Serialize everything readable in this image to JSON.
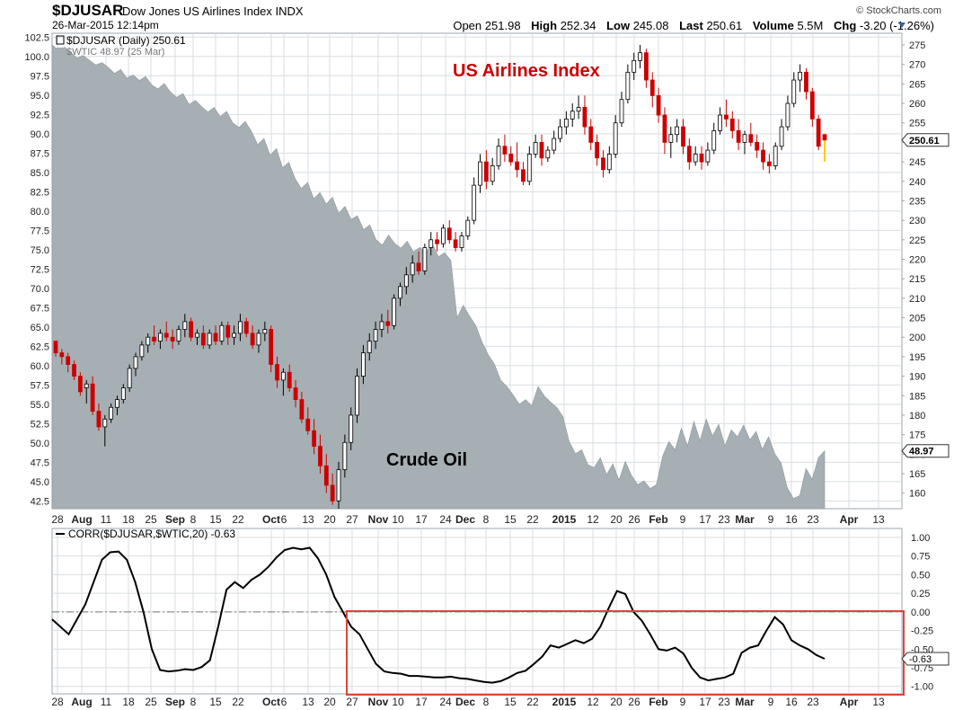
{
  "header": {
    "symbol": "$DJUSAR",
    "name": "Dow Jones US Airlines Index",
    "exchange": "INDX",
    "datetime": "26-Mar-2015 12:14pm",
    "brand": "© StockCharts.com",
    "quote": {
      "open_label": "Open",
      "open": "251.98",
      "high_label": "High",
      "high": "252.34",
      "low_label": "Low",
      "low": "245.08",
      "last_label": "Last",
      "last": "250.61",
      "volume_label": "Volume",
      "volume": "5.5M",
      "chg_label": "Chg",
      "chg": "-3.20 (-1.26%)"
    }
  },
  "chart_data": [
    {
      "type": "candlestick",
      "legend": [
        "$DJUSAR (Daily) 250.61",
        "$WTIC 48.97 (25 Mar)"
      ],
      "annotations": [
        "US Airlines Index",
        "Crude Oil"
      ],
      "colors": {
        "up": "#000000",
        "down": "#cc0000",
        "oil_area": "#a6afb3",
        "annotation_airlines": "#cc0000",
        "annotation_oil": "#000000",
        "last_candle": "#ffcc00"
      },
      "x_tick_labels": [
        "28",
        "Aug",
        "11",
        "18",
        "25",
        "Sep",
        "8",
        "15",
        "22",
        "Oct",
        "6",
        "13",
        "20",
        "27",
        "Nov",
        "10",
        "17",
        "24",
        "Dec",
        "8",
        "15",
        "22",
        "2015",
        "12",
        "20",
        "26",
        "Feb",
        "9",
        "17",
        "23",
        "Mar",
        "9",
        "16",
        "23",
        "Apr",
        "13"
      ],
      "bold_x_ticks": [
        "Aug",
        "Sep",
        "Oct",
        "Nov",
        "Dec",
        "2015",
        "Feb",
        "Mar",
        "Apr"
      ],
      "left_axis": {
        "series": "$WTIC",
        "ylim": [
          41.5,
          103
        ],
        "ticks": [
          "102.5",
          "100.0",
          "97.5",
          "95.0",
          "92.5",
          "90.0",
          "87.5",
          "85.0",
          "82.5",
          "80.0",
          "77.5",
          "75.0",
          "72.5",
          "70.0",
          "67.5",
          "65.0",
          "62.5",
          "60.0",
          "57.5",
          "55.0",
          "52.5",
          "50.0",
          "47.5",
          "45.0",
          "42.5"
        ]
      },
      "right_axis": {
        "series": "$DJUSAR",
        "ylim": [
          156,
          278
        ],
        "ticks": [
          "275",
          "270",
          "265",
          "260",
          "255",
          "250",
          "245",
          "240",
          "235",
          "230",
          "225",
          "220",
          "215",
          "210",
          "205",
          "200",
          "195",
          "190",
          "185",
          "180",
          "175",
          "170",
          "165",
          "160"
        ],
        "last_value_tag": "250.61",
        "oil_value_tag": "48.97"
      },
      "wtic_close": [
        101.5,
        100.8,
        101.2,
        100.5,
        99.8,
        100.1,
        99.5,
        98.9,
        99.2,
        98.6,
        97.8,
        98.3,
        97.2,
        97.6,
        96.9,
        97.4,
        96.3,
        95.8,
        96.5,
        95.4,
        94.7,
        95.2,
        93.8,
        94.3,
        93.5,
        92.8,
        93.4,
        92.2,
        92.9,
        91.4,
        90.8,
        91.6,
        90.3,
        88.6,
        89.4,
        87.2,
        88.1,
        85.6,
        86.3,
        84.2,
        82.9,
        83.7,
        81.6,
        82.4,
        80.9,
        81.8,
        79.7,
        80.6,
        78.9,
        79.4,
        77.6,
        78.2,
        76.3,
        75.6,
        76.9,
        75.8,
        75.2,
        76.1,
        74.7,
        75.3,
        74.6,
        75.8,
        74.1,
        74.6,
        73.6,
        66.2,
        67.8,
        66.4,
        65.2,
        63.1,
        61.4,
        60.2,
        58.1,
        57.3,
        56.2,
        55.0,
        55.6,
        54.8,
        57.3,
        56.1,
        55.3,
        54.6,
        53.4,
        50.2,
        48.6,
        49.1,
        47.2,
        46.8,
        48.1,
        45.9,
        47.3,
        45.2,
        47.6,
        45.8,
        44.6,
        45.1,
        44.1,
        44.6,
        48.3,
        50.2,
        49.1,
        51.9,
        49.6,
        52.8,
        50.3,
        53.1,
        50.9,
        52.4,
        49.6,
        51.7,
        50.8,
        52.3,
        50.4,
        51.5,
        49.2,
        50.8,
        48.6,
        47.4,
        44.2,
        42.8,
        43.2,
        46.7,
        45.3,
        48.1,
        48.97
      ],
      "djusar_ohlc": [
        [
          199,
          199,
          195,
          196
        ],
        [
          196,
          197,
          193,
          195
        ],
        [
          195,
          196,
          191,
          193
        ],
        [
          193,
          194,
          189,
          190
        ],
        [
          190,
          191,
          185,
          186
        ],
        [
          187,
          189,
          183,
          188
        ],
        [
          188,
          190,
          180,
          181
        ],
        [
          181,
          183,
          176,
          177
        ],
        [
          177,
          180,
          172,
          179
        ],
        [
          179,
          183,
          178,
          182
        ],
        [
          182,
          185,
          180,
          184
        ],
        [
          184,
          188,
          183,
          187
        ],
        [
          187,
          193,
          186,
          192
        ],
        [
          192,
          196,
          190,
          195
        ],
        [
          195,
          199,
          194,
          198
        ],
        [
          198,
          201,
          196,
          200
        ],
        [
          200,
          203,
          198,
          199
        ],
        [
          199,
          202,
          197,
          201
        ],
        [
          201,
          204,
          199,
          200
        ],
        [
          200,
          202,
          197,
          199
        ],
        [
          199,
          203,
          198,
          202
        ],
        [
          202,
          206,
          200,
          204
        ],
        [
          204,
          205,
          199,
          200
        ],
        [
          200,
          202,
          198,
          201
        ],
        [
          201,
          203,
          197,
          198
        ],
        [
          198,
          202,
          197,
          201
        ],
        [
          201,
          203,
          198,
          199
        ],
        [
          199,
          204,
          198,
          203
        ],
        [
          203,
          204,
          198,
          200
        ],
        [
          200,
          203,
          198,
          201
        ],
        [
          201,
          206,
          199,
          204
        ],
        [
          204,
          205,
          200,
          201
        ],
        [
          201,
          203,
          197,
          198
        ],
        [
          198,
          202,
          196,
          201
        ],
        [
          201,
          204,
          199,
          202
        ],
        [
          202,
          203,
          191,
          193
        ],
        [
          193,
          195,
          187,
          189
        ],
        [
          189,
          192,
          185,
          191
        ],
        [
          191,
          193,
          186,
          187
        ],
        [
          187,
          189,
          182,
          184
        ],
        [
          184,
          186,
          178,
          179
        ],
        [
          179,
          182,
          175,
          176
        ],
        [
          176,
          179,
          170,
          172
        ],
        [
          172,
          175,
          165,
          167
        ],
        [
          167,
          170,
          160,
          162
        ],
        [
          162,
          165,
          157,
          158
        ],
        [
          158,
          168,
          156,
          166
        ],
        [
          166,
          175,
          164,
          173
        ],
        [
          173,
          182,
          171,
          180
        ],
        [
          180,
          192,
          178,
          190
        ],
        [
          190,
          198,
          188,
          196
        ],
        [
          196,
          201,
          194,
          199
        ],
        [
          199,
          204,
          197,
          202
        ],
        [
          202,
          206,
          200,
          204
        ],
        [
          204,
          207,
          201,
          203
        ],
        [
          203,
          211,
          202,
          210
        ],
        [
          210,
          214,
          208,
          213
        ],
        [
          213,
          218,
          211,
          216
        ],
        [
          216,
          221,
          214,
          219
        ],
        [
          219,
          222,
          216,
          217
        ],
        [
          217,
          224,
          216,
          223
        ],
        [
          223,
          227,
          221,
          225
        ],
        [
          225,
          227,
          222,
          224
        ],
        [
          224,
          229,
          223,
          228
        ],
        [
          228,
          230,
          224,
          225
        ],
        [
          225,
          227,
          222,
          223
        ],
        [
          223,
          227,
          222,
          226
        ],
        [
          226,
          231,
          225,
          230
        ],
        [
          230,
          241,
          229,
          239
        ],
        [
          239,
          247,
          237,
          245
        ],
        [
          245,
          248,
          238,
          240
        ],
        [
          240,
          246,
          239,
          244
        ],
        [
          244,
          251,
          243,
          249
        ],
        [
          249,
          252,
          245,
          247
        ],
        [
          247,
          249,
          244,
          245
        ],
        [
          245,
          250,
          241,
          243
        ],
        [
          243,
          245,
          239,
          240
        ],
        [
          240,
          249,
          239,
          247
        ],
        [
          247,
          252,
          246,
          250
        ],
        [
          250,
          252,
          244,
          246
        ],
        [
          246,
          249,
          245,
          248
        ],
        [
          248,
          253,
          247,
          251
        ],
        [
          251,
          256,
          250,
          254
        ],
        [
          254,
          258,
          252,
          256
        ],
        [
          256,
          260,
          254,
          258
        ],
        [
          258,
          262,
          256,
          259
        ],
        [
          259,
          262,
          252,
          254
        ],
        [
          254,
          256,
          248,
          250
        ],
        [
          250,
          252,
          244,
          246
        ],
        [
          246,
          248,
          241,
          243
        ],
        [
          243,
          249,
          242,
          247
        ],
        [
          247,
          257,
          246,
          255
        ],
        [
          255,
          263,
          254,
          261
        ],
        [
          261,
          270,
          260,
          268
        ],
        [
          268,
          273,
          266,
          271
        ],
        [
          271,
          275,
          269,
          273
        ],
        [
          273,
          274,
          264,
          266
        ],
        [
          266,
          268,
          259,
          262
        ],
        [
          262,
          264,
          255,
          257
        ],
        [
          257,
          259,
          247,
          250
        ],
        [
          250,
          254,
          246,
          252
        ],
        [
          252,
          256,
          250,
          254
        ],
        [
          254,
          256,
          247,
          249
        ],
        [
          249,
          251,
          243,
          245
        ],
        [
          245,
          249,
          244,
          247
        ],
        [
          247,
          249,
          243,
          245
        ],
        [
          245,
          250,
          244,
          248
        ],
        [
          248,
          255,
          247,
          253
        ],
        [
          253,
          259,
          252,
          257
        ],
        [
          257,
          261,
          254,
          256
        ],
        [
          256,
          258,
          251,
          253
        ],
        [
          253,
          256,
          248,
          250
        ],
        [
          250,
          253,
          247,
          252
        ],
        [
          252,
          255,
          249,
          250
        ],
        [
          250,
          252,
          246,
          248
        ],
        [
          248,
          250,
          243,
          245
        ],
        [
          245,
          247,
          242,
          244
        ],
        [
          244,
          250,
          243,
          249
        ],
        [
          249,
          256,
          248,
          254
        ],
        [
          254,
          262,
          253,
          260
        ],
        [
          260,
          268,
          259,
          266
        ],
        [
          266,
          270,
          263,
          268
        ],
        [
          268,
          269,
          261,
          263
        ],
        [
          263,
          264,
          254,
          256
        ],
        [
          256,
          257,
          248,
          249
        ],
        [
          251.98,
          252.34,
          245.08,
          250.61
        ]
      ]
    },
    {
      "type": "line",
      "legend": "CORR($DJUSAR,$WTIC,20) -0.63",
      "color": "#000000",
      "highlight_box_color": "#d9453a",
      "x_tick_labels": [
        "28",
        "Aug",
        "11",
        "18",
        "25",
        "Sep",
        "8",
        "15",
        "22",
        "Oct",
        "6",
        "13",
        "20",
        "27",
        "Nov",
        "10",
        "17",
        "24",
        "Dec",
        "8",
        "15",
        "22",
        "2015",
        "12",
        "20",
        "26",
        "Feb",
        "9",
        "17",
        "23",
        "Mar",
        "9",
        "16",
        "23",
        "Apr",
        "13"
      ],
      "ylim": [
        -1.1,
        1.12
      ],
      "y_ticks": [
        "1.00",
        "0.75",
        "0.50",
        "0.25",
        "0.00",
        "-0.25",
        "-0.50",
        "-0.75",
        "-1.00"
      ],
      "last_value_tag": "-0.63",
      "values": [
        -0.1,
        -0.2,
        -0.3,
        -0.1,
        0.1,
        0.4,
        0.7,
        0.8,
        0.81,
        0.7,
        0.4,
        0.0,
        -0.5,
        -0.78,
        -0.8,
        -0.79,
        -0.77,
        -0.78,
        -0.74,
        -0.65,
        -0.2,
        0.3,
        0.4,
        0.32,
        0.43,
        0.5,
        0.6,
        0.73,
        0.83,
        0.86,
        0.84,
        0.86,
        0.72,
        0.5,
        0.2,
        0.0,
        -0.2,
        -0.3,
        -0.5,
        -0.7,
        -0.8,
        -0.82,
        -0.83,
        -0.86,
        -0.86,
        -0.87,
        -0.88,
        -0.88,
        -0.87,
        -0.89,
        -0.9,
        -0.92,
        -0.94,
        -0.95,
        -0.93,
        -0.88,
        -0.82,
        -0.79,
        -0.7,
        -0.6,
        -0.45,
        -0.48,
        -0.43,
        -0.38,
        -0.42,
        -0.36,
        -0.2,
        0.05,
        0.28,
        0.24,
        0.0,
        -0.12,
        -0.3,
        -0.5,
        -0.52,
        -0.48,
        -0.56,
        -0.75,
        -0.88,
        -0.92,
        -0.9,
        -0.88,
        -0.83,
        -0.55,
        -0.48,
        -0.45,
        -0.25,
        -0.07,
        -0.17,
        -0.38,
        -0.45,
        -0.5,
        -0.58,
        -0.63
      ]
    }
  ]
}
